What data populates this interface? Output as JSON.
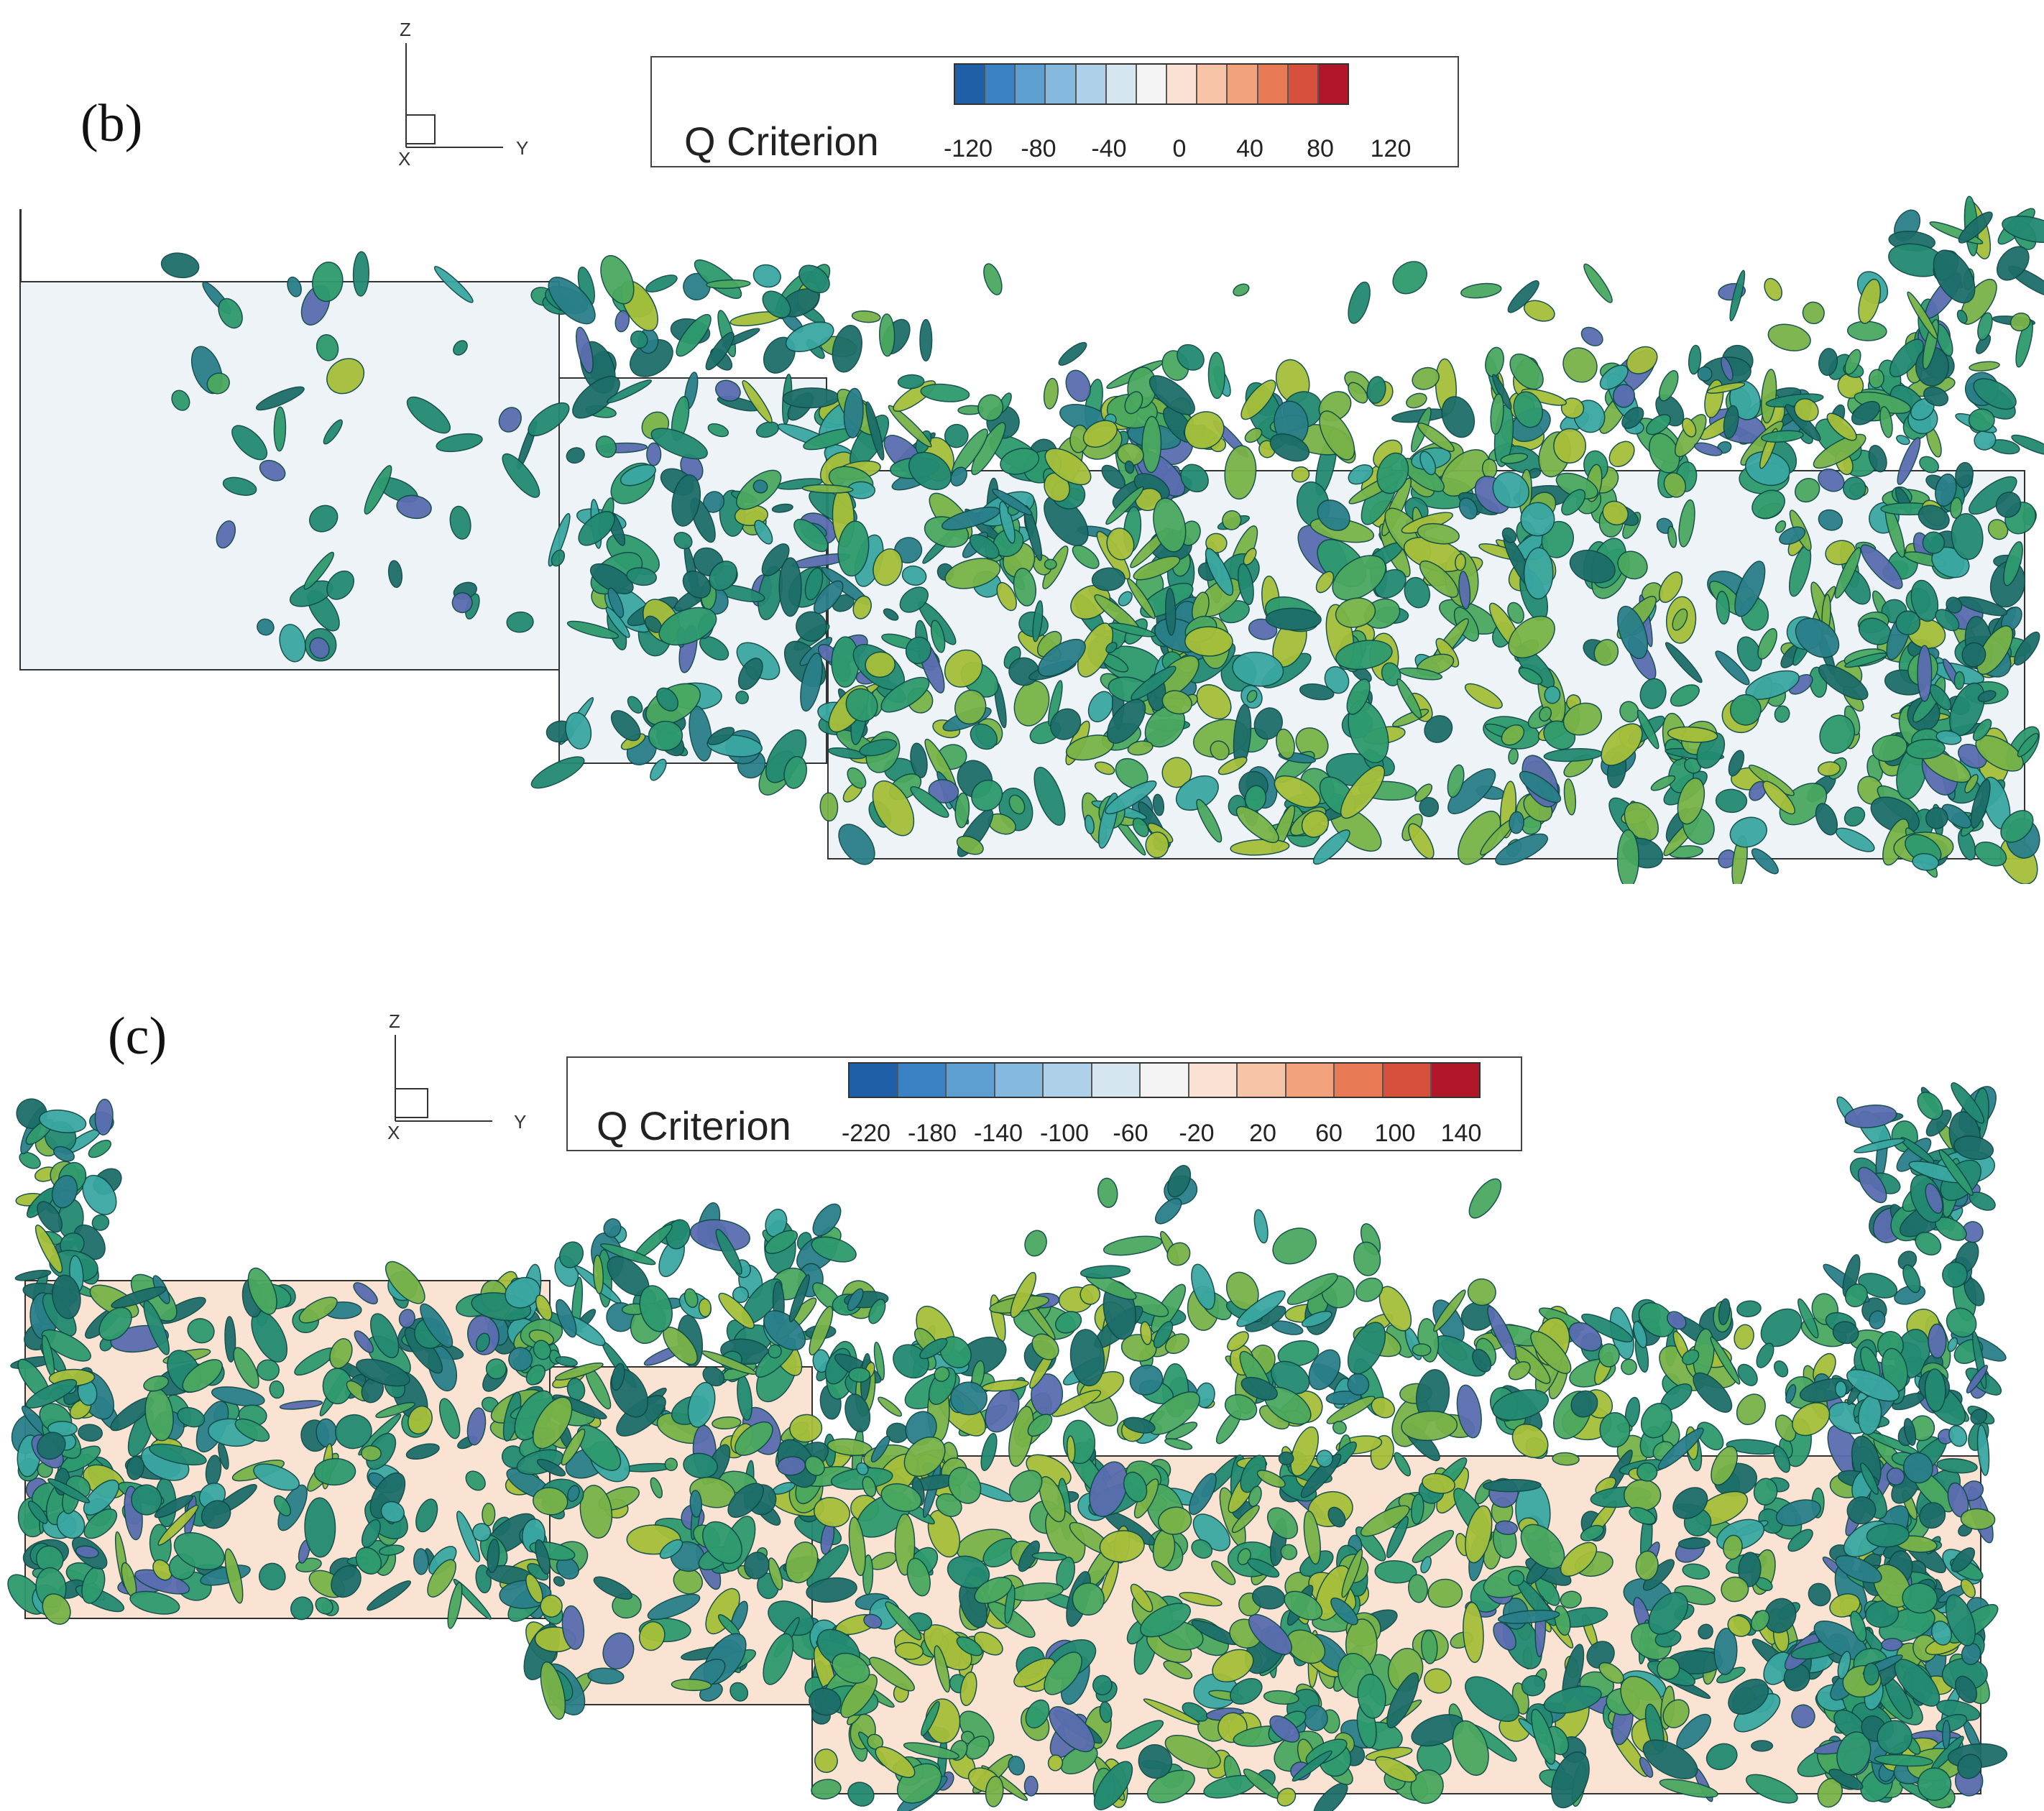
{
  "panels": [
    {
      "label": "(b)",
      "axes": {
        "z": "Z",
        "y": "Y",
        "x": "X"
      },
      "legend": {
        "title": "Q Criterion",
        "ticks": [
          "-120",
          "-80",
          "-40",
          "0",
          "40",
          "80",
          "120"
        ],
        "colors": [
          "#1f5fa8",
          "#3b82c4",
          "#5e9fd2",
          "#86b9de",
          "#aed0e8",
          "#d6e6f1",
          "#f4f4f4",
          "#fae1d3",
          "#f7c4a8",
          "#f2a27c",
          "#e87a56",
          "#d6503d",
          "#b0182a"
        ]
      },
      "background_tint": "#eef3f7"
    },
    {
      "label": "(c)",
      "axes": {
        "z": "Z",
        "y": "Y",
        "x": "X"
      },
      "legend": {
        "title": "Q Criterion",
        "ticks": [
          "-220",
          "-180",
          "-140",
          "-100",
          "-60",
          "-20",
          "20",
          "60",
          "100",
          "140"
        ],
        "colors": [
          "#1f5fa8",
          "#3b82c4",
          "#5e9fd2",
          "#86b9de",
          "#aed0e8",
          "#d6e6f1",
          "#f4f4f4",
          "#fae1d3",
          "#f7c4a8",
          "#f2a27c",
          "#e87a56",
          "#d6503d",
          "#b0182a"
        ]
      },
      "background_tint": "#fbe3d3"
    }
  ],
  "vortex_colors": [
    "#1d6e6a",
    "#238a72",
    "#2e9a6e",
    "#4aa85f",
    "#79b348",
    "#a6bf3a",
    "#2a7f8a",
    "#3aa7a2",
    "#5a6db0"
  ]
}
